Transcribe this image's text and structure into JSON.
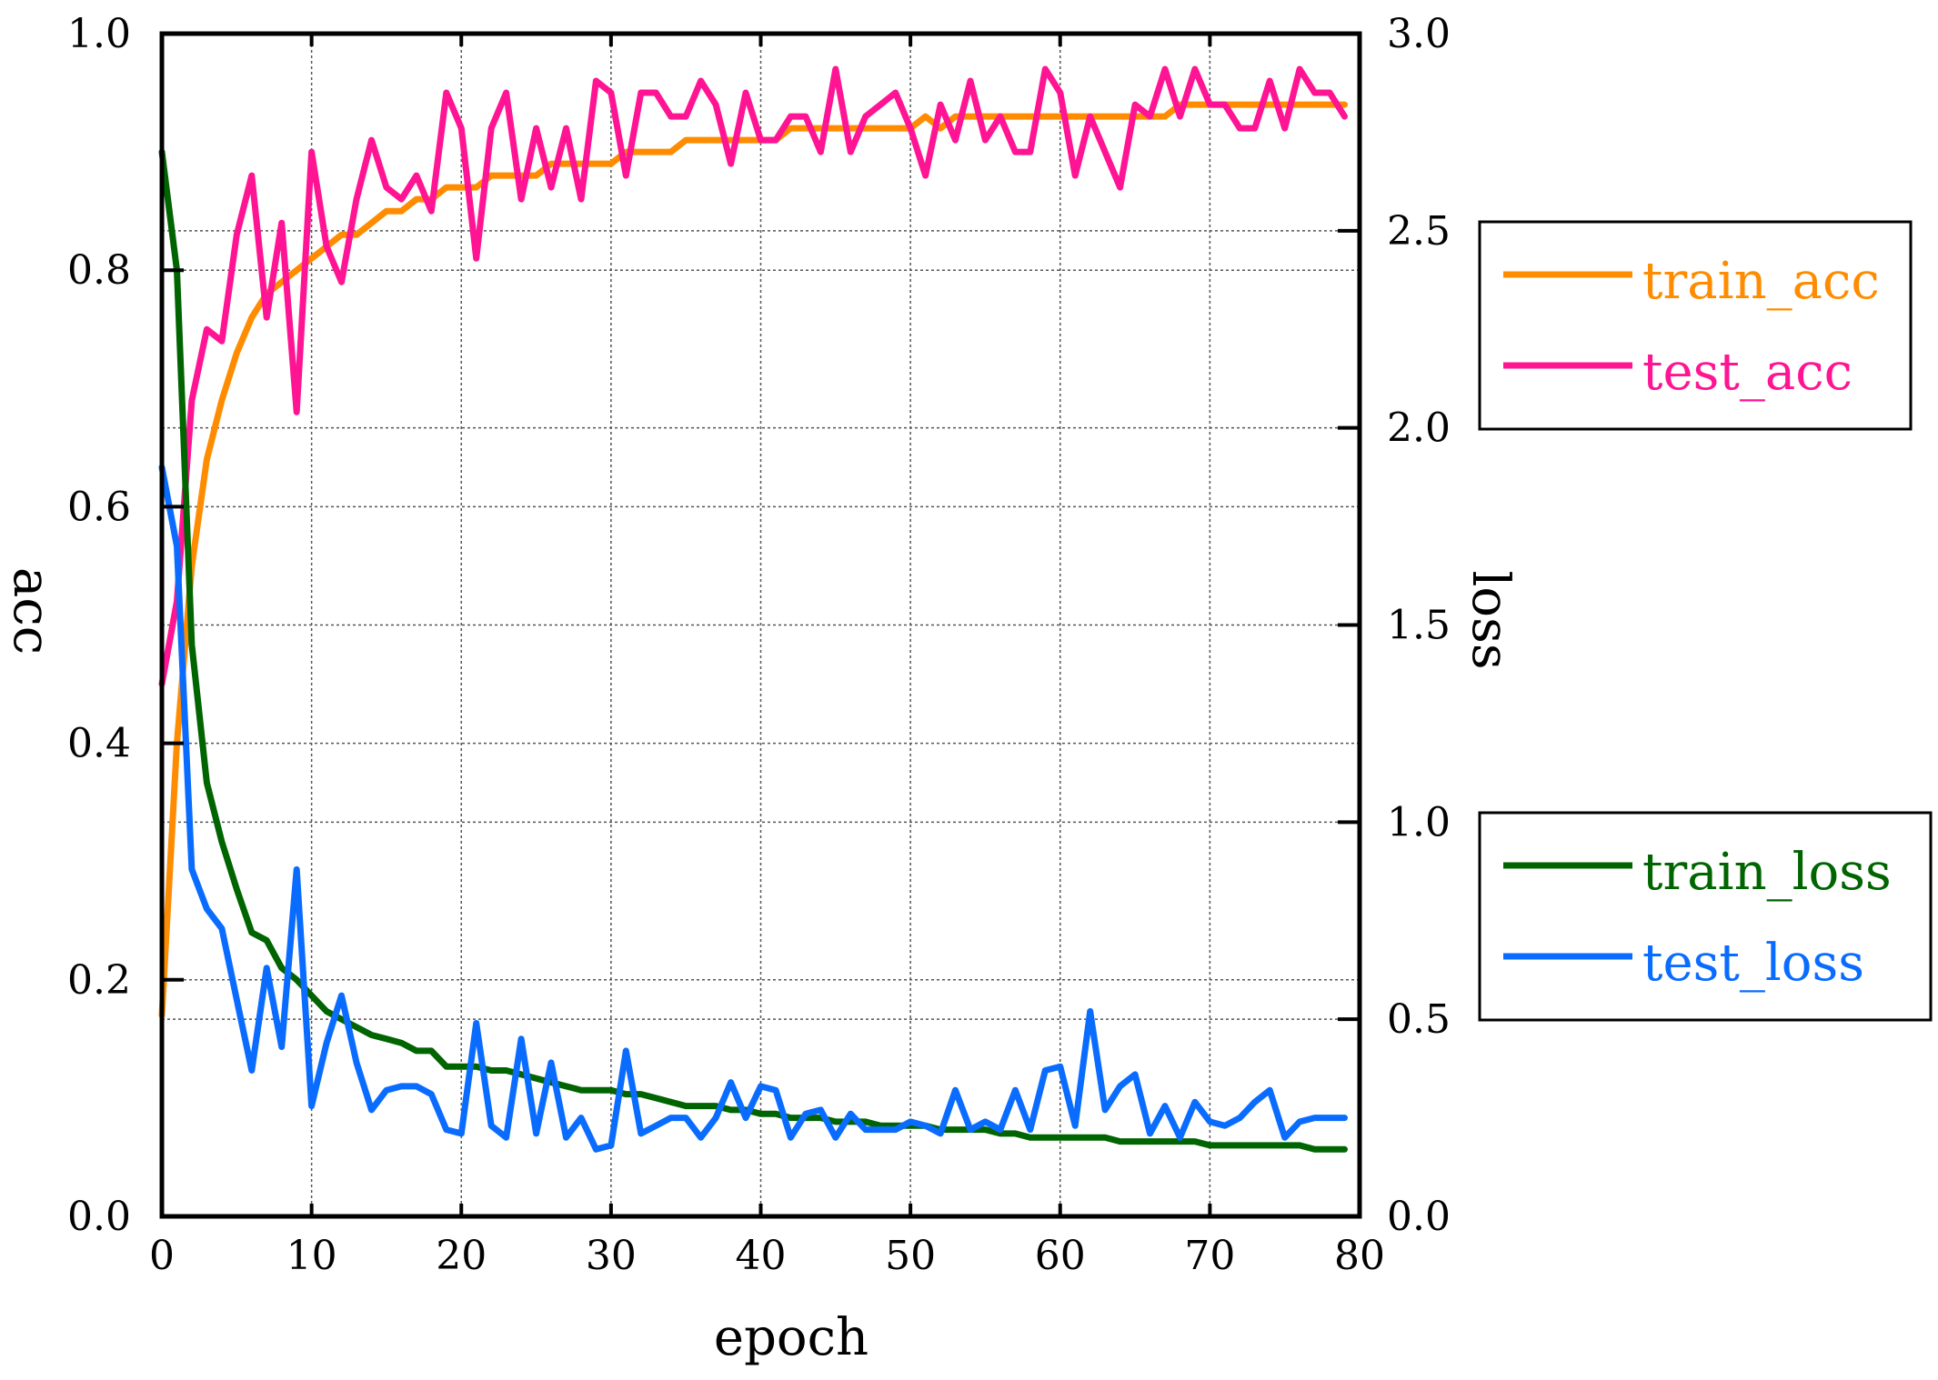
{
  "chart_data": {
    "type": "line",
    "xlabel": "epoch",
    "ylabel_left": "acc",
    "ylabel_right": "loss",
    "xlim": [
      0,
      80
    ],
    "ylim_left": [
      0,
      1.0
    ],
    "ylim_right": [
      0,
      3.0
    ],
    "x_ticks": [
      "0",
      "10",
      "20",
      "30",
      "40",
      "50",
      "60",
      "70",
      "80"
    ],
    "y_left_ticks": [
      "0.0",
      "0.2",
      "0.4",
      "0.6",
      "0.8",
      "1.0"
    ],
    "y_right_ticks": [
      "0.0",
      "0.5",
      "1.0",
      "1.5",
      "2.0",
      "2.5",
      "3.0"
    ],
    "grid": true,
    "legends": [
      {
        "placement": "right-upper",
        "entries": [
          "train_acc",
          "test_acc"
        ]
      },
      {
        "placement": "right-lower",
        "entries": [
          "train_loss",
          "test_loss"
        ]
      }
    ],
    "series": [
      {
        "name": "train_acc",
        "axis": "left",
        "color": "#ff8c00",
        "values": [
          0.17,
          0.4,
          0.55,
          0.64,
          0.69,
          0.73,
          0.76,
          0.78,
          0.79,
          0.8,
          0.81,
          0.82,
          0.83,
          0.83,
          0.84,
          0.85,
          0.85,
          0.86,
          0.86,
          0.87,
          0.87,
          0.87,
          0.88,
          0.88,
          0.88,
          0.88,
          0.89,
          0.89,
          0.89,
          0.89,
          0.89,
          0.9,
          0.9,
          0.9,
          0.9,
          0.91,
          0.91,
          0.91,
          0.91,
          0.91,
          0.91,
          0.91,
          0.92,
          0.92,
          0.92,
          0.92,
          0.92,
          0.92,
          0.92,
          0.92,
          0.92,
          0.93,
          0.92,
          0.93,
          0.93,
          0.93,
          0.93,
          0.93,
          0.93,
          0.93,
          0.93,
          0.93,
          0.93,
          0.93,
          0.93,
          0.93,
          0.93,
          0.93,
          0.94,
          0.94,
          0.94,
          0.94,
          0.94,
          0.94,
          0.94,
          0.94,
          0.94,
          0.94,
          0.94,
          0.94
        ]
      },
      {
        "name": "test_acc",
        "axis": "left",
        "color": "#ff1493",
        "values": [
          0.45,
          0.52,
          0.69,
          0.75,
          0.74,
          0.83,
          0.88,
          0.76,
          0.84,
          0.68,
          0.9,
          0.82,
          0.79,
          0.86,
          0.91,
          0.87,
          0.86,
          0.88,
          0.85,
          0.95,
          0.92,
          0.81,
          0.92,
          0.95,
          0.86,
          0.92,
          0.87,
          0.92,
          0.86,
          0.96,
          0.95,
          0.88,
          0.95,
          0.95,
          0.93,
          0.93,
          0.96,
          0.94,
          0.89,
          0.95,
          0.91,
          0.91,
          0.93,
          0.93,
          0.9,
          0.97,
          0.9,
          0.93,
          0.94,
          0.95,
          0.92,
          0.88,
          0.94,
          0.91,
          0.96,
          0.91,
          0.93,
          0.9,
          0.9,
          0.97,
          0.95,
          0.88,
          0.93,
          0.9,
          0.87,
          0.94,
          0.93,
          0.97,
          0.93,
          0.97,
          0.94,
          0.94,
          0.92,
          0.92,
          0.96,
          0.92,
          0.97,
          0.95,
          0.95,
          0.93
        ]
      },
      {
        "name": "train_loss",
        "axis": "right",
        "color": "#006400",
        "values": [
          2.7,
          2.4,
          1.45,
          1.1,
          0.95,
          0.83,
          0.72,
          0.7,
          0.63,
          0.6,
          0.56,
          0.52,
          0.5,
          0.48,
          0.46,
          0.45,
          0.44,
          0.42,
          0.42,
          0.38,
          0.38,
          0.38,
          0.37,
          0.37,
          0.36,
          0.35,
          0.34,
          0.33,
          0.32,
          0.32,
          0.32,
          0.31,
          0.31,
          0.3,
          0.29,
          0.28,
          0.28,
          0.28,
          0.27,
          0.27,
          0.26,
          0.26,
          0.25,
          0.25,
          0.25,
          0.24,
          0.24,
          0.24,
          0.23,
          0.23,
          0.23,
          0.23,
          0.22,
          0.22,
          0.22,
          0.22,
          0.21,
          0.21,
          0.2,
          0.2,
          0.2,
          0.2,
          0.2,
          0.2,
          0.19,
          0.19,
          0.19,
          0.19,
          0.19,
          0.19,
          0.18,
          0.18,
          0.18,
          0.18,
          0.18,
          0.18,
          0.18,
          0.17,
          0.17,
          0.17
        ]
      },
      {
        "name": "test_loss",
        "axis": "right",
        "color": "#0a6cff",
        "values": [
          1.9,
          1.7,
          0.88,
          0.78,
          0.73,
          0.55,
          0.37,
          0.63,
          0.43,
          0.88,
          0.28,
          0.44,
          0.56,
          0.39,
          0.27,
          0.32,
          0.33,
          0.33,
          0.31,
          0.22,
          0.21,
          0.49,
          0.23,
          0.2,
          0.45,
          0.21,
          0.39,
          0.2,
          0.25,
          0.17,
          0.18,
          0.42,
          0.21,
          0.23,
          0.25,
          0.25,
          0.2,
          0.25,
          0.34,
          0.25,
          0.33,
          0.32,
          0.2,
          0.26,
          0.27,
          0.2,
          0.26,
          0.22,
          0.22,
          0.22,
          0.24,
          0.23,
          0.21,
          0.32,
          0.22,
          0.24,
          0.22,
          0.32,
          0.22,
          0.37,
          0.38,
          0.23,
          0.52,
          0.27,
          0.33,
          0.36,
          0.21,
          0.28,
          0.2,
          0.29,
          0.24,
          0.23,
          0.25,
          0.29,
          0.32,
          0.2,
          0.24,
          0.25,
          0.25,
          0.25
        ]
      }
    ]
  }
}
